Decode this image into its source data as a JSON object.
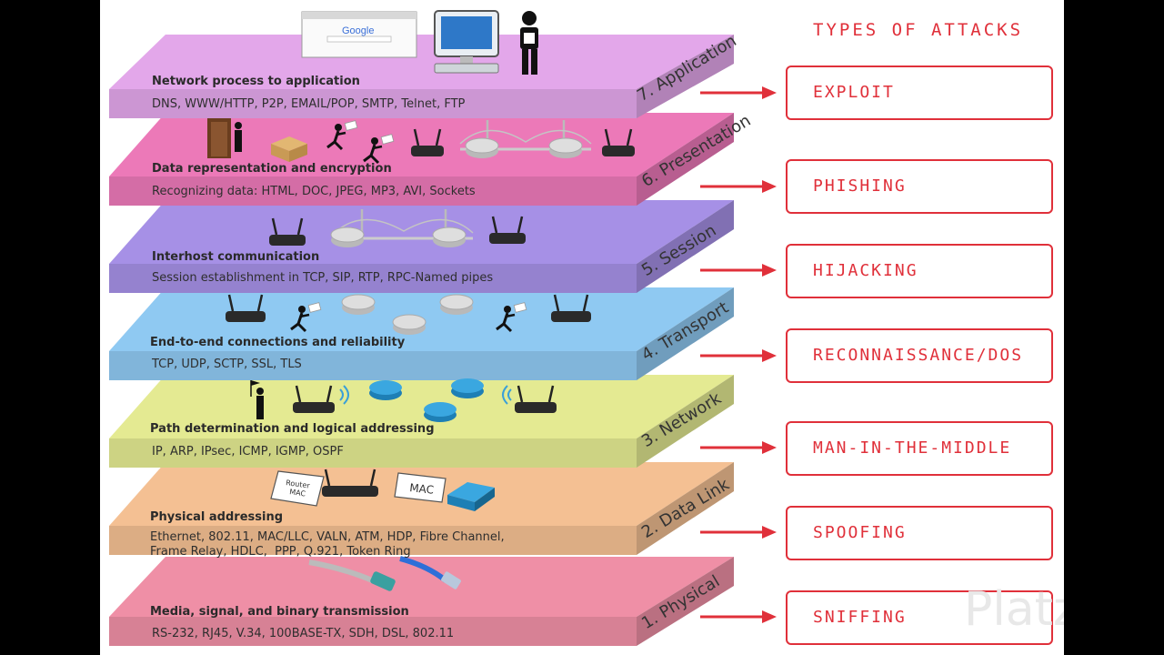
{
  "layers": [
    {
      "number_name": "7. Application",
      "title": "Network process to application",
      "protocols": "DNS, WWW/HTTP, P2P, EMAIL/POP, SMTP, Telnet, FTP",
      "color": "#e3a7ea"
    },
    {
      "number_name": "6. Presentation",
      "title": "Data representation and encryption",
      "protocols": "Recognizing data: HTML, DOC, JPEG, MP3, AVI, Sockets",
      "color": "#ec79b8"
    },
    {
      "number_name": "5. Session",
      "title": "Interhost communication",
      "protocols": "Session establishment in TCP, SIP, RTP, RPC-Named pipes",
      "color": "#a690e6"
    },
    {
      "number_name": "4. Transport",
      "title": "End-to-end connections and reliability",
      "protocols": "TCP, UDP, SCTP, SSL, TLS",
      "color": "#8fc9f2"
    },
    {
      "number_name": "3. Network",
      "title": "Path determination and logical addressing",
      "protocols": "IP, ARP, IPsec, ICMP, IGMP, OSPF",
      "color": "#e4ea92"
    },
    {
      "number_name": "2. Data Link",
      "title": "Physical addressing",
      "protocols": "Ethernet, 802.11, MAC/LLC, VALN, ATM, HDP, Fibre Channel,\nFrame Relay, HDLC,  PPP, Q.921, Token Ring",
      "color": "#f4c093"
    },
    {
      "number_name": "1. Physical",
      "title": "Media, signal, and binary transmission",
      "protocols": "RS-232, RJ45, V.34, 100BASE-TX, SDH, DSL, 802.11",
      "color": "#ef8fa6"
    }
  ],
  "attacks_heading": "TYPES OF ATTACKS",
  "attacks": [
    "EXPLOIT",
    "PHISHING",
    "HIJACKING",
    "RECONNAISSANCE/DOS",
    "MAN-IN-THE-MIDDLE",
    "SPOOFING",
    "SNIFFING"
  ],
  "icon_labels": {
    "search_logo": "Google",
    "router_tag": "Router\nMAC",
    "mac_tag": "MAC"
  },
  "watermark": "Platzi",
  "colors": {
    "attack_red": "#e0303a"
  }
}
